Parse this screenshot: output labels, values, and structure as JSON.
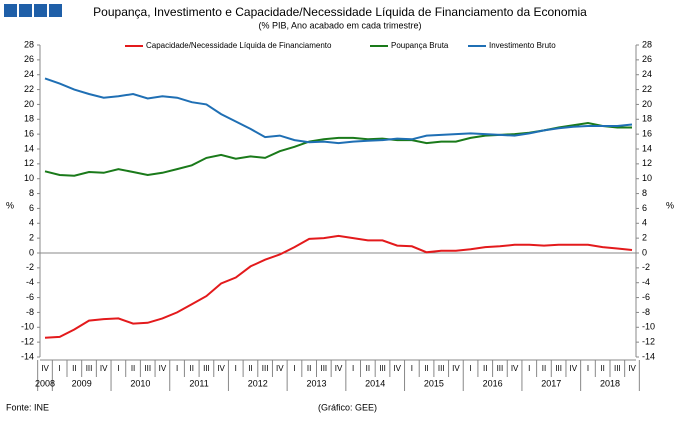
{
  "chart_data": {
    "type": "line",
    "title": "Poupança, Investimento e Capacidade/Necessidade Líquida de Financiamento da Economia",
    "subtitle": "(% PIB, Ano acabado em cada trimestre)",
    "ylabel": "%",
    "y2label": "%",
    "categories": [
      "IV",
      "I",
      "II",
      "III",
      "IV",
      "I",
      "II",
      "III",
      "IV",
      "I",
      "II",
      "III",
      "IV",
      "I",
      "II",
      "III",
      "IV",
      "I",
      "II",
      "III",
      "IV",
      "I",
      "II",
      "III",
      "IV",
      "I",
      "II",
      "III",
      "IV",
      "I",
      "II",
      "III",
      "IV",
      "I",
      "II",
      "III",
      "IV",
      "I",
      "II",
      "III",
      "IV"
    ],
    "years": [
      "2008",
      "2009",
      "2010",
      "2011",
      "2012",
      "2013",
      "2014",
      "2015",
      "2016",
      "2017",
      "2018"
    ],
    "series": [
      {
        "name": "Capacidade/Necessidade Líquida de Financiamento",
        "color": "#e31a1c",
        "values": [
          -11.4,
          -11.3,
          -10.3,
          -9.1,
          -8.9,
          -8.8,
          -9.5,
          -9.4,
          -8.8,
          -8.0,
          -6.9,
          -5.8,
          -4.1,
          -3.3,
          -1.8,
          -0.9,
          -0.2,
          0.8,
          1.9,
          2.0,
          2.3,
          2.0,
          1.7,
          1.7,
          1.0,
          0.9,
          0.1,
          0.3,
          0.3,
          0.5,
          0.8,
          0.9,
          1.1,
          1.1,
          1.0,
          1.1,
          1.1,
          1.1,
          0.8,
          0.6,
          0.4
        ]
      },
      {
        "name": "Poupança Bruta",
        "color": "#1a7a1a",
        "values": [
          11.0,
          10.5,
          10.4,
          10.9,
          10.8,
          11.3,
          10.9,
          10.5,
          10.8,
          11.3,
          11.8,
          12.8,
          13.2,
          12.7,
          13.0,
          12.8,
          13.7,
          14.3,
          15.0,
          15.3,
          15.5,
          15.5,
          15.3,
          15.4,
          15.2,
          15.2,
          14.8,
          15.0,
          15.0,
          15.5,
          15.8,
          15.9,
          16.0,
          16.2,
          16.5,
          16.9,
          17.2,
          17.5,
          17.1,
          16.9,
          16.9
        ]
      },
      {
        "name": "Investimento Bruto",
        "color": "#1f6fb4",
        "values": [
          23.5,
          22.8,
          22.0,
          21.4,
          20.9,
          21.1,
          21.4,
          20.8,
          21.1,
          20.9,
          20.3,
          20.0,
          18.7,
          17.7,
          16.7,
          15.6,
          15.8,
          15.2,
          14.9,
          15.0,
          14.8,
          15.0,
          15.1,
          15.2,
          15.4,
          15.3,
          15.8,
          15.9,
          16.0,
          16.1,
          16.0,
          15.9,
          15.8,
          16.1,
          16.5,
          16.8,
          17.0,
          17.1,
          17.1,
          17.1,
          17.3
        ]
      }
    ],
    "ylim": [
      -14,
      28
    ],
    "yticks": [
      -14,
      -12,
      -10,
      -8,
      -6,
      -4,
      -2,
      0,
      2,
      4,
      6,
      8,
      10,
      12,
      14,
      16,
      18,
      20,
      22,
      24,
      26,
      28
    ],
    "y2lim": [
      -14,
      28
    ],
    "y2ticks": [
      -14,
      -12,
      -10,
      -8,
      -6,
      -4,
      -2,
      0,
      2,
      4,
      6,
      8,
      10,
      12,
      14,
      16,
      18,
      20,
      22,
      24,
      26,
      28
    ],
    "source": "Fonte: INE",
    "credit": "(Gráfico: GEE)"
  }
}
